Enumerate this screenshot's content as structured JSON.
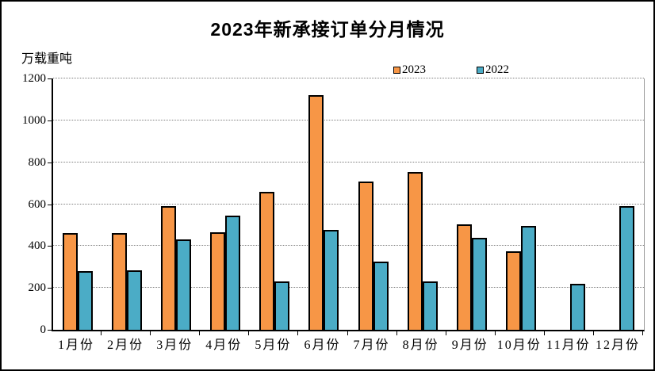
{
  "title": "2023年新承接订单分月情况",
  "unit_label": "万载重吨",
  "chart_data": {
    "type": "bar",
    "title": "2023年新承接订单分月情况",
    "ylabel": "万载重吨",
    "categories": [
      "1月份",
      "2月份",
      "3月份",
      "4月份",
      "5月份",
      "6月份",
      "7月份",
      "8月份",
      "9月份",
      "10月份",
      "11月份",
      "12月份"
    ],
    "series": [
      {
        "name": "2023",
        "color": "#F79646",
        "values": [
          460,
          462,
          591,
          466,
          657,
          1121,
          708,
          755,
          504,
          373,
          null,
          null
        ]
      },
      {
        "name": "2022",
        "color": "#4BACC6",
        "values": [
          282,
          285,
          430,
          545,
          230,
          477,
          326,
          232,
          440,
          496,
          220,
          591
        ]
      }
    ],
    "ylim": [
      0,
      1200
    ],
    "ytick_step": 200,
    "grid": true,
    "gridline_style": "dotted",
    "legend_position": "top"
  }
}
